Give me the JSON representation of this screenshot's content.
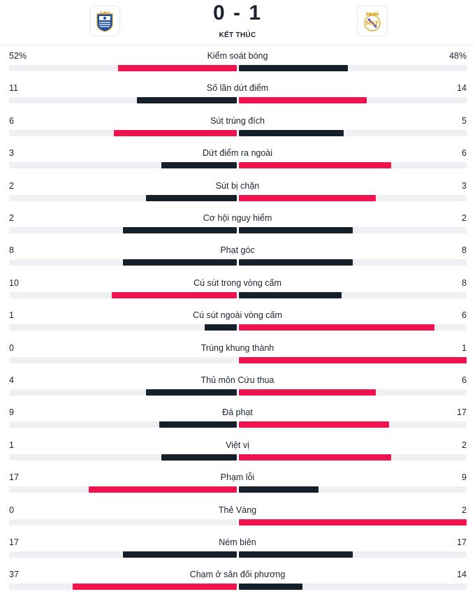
{
  "match": {
    "score": "0 - 1",
    "status": "KẾT THÚC",
    "home_logo": "real-sociedad-crest-icon",
    "away_logo": "real-madrid-crest-icon"
  },
  "colors": {
    "leader": "#f0134d",
    "trailer": "#15202b"
  },
  "stats": [
    {
      "label": "Kiểm soát bóng",
      "home": "52%",
      "away": "48%",
      "home_share": 0.52,
      "away_share": 0.48,
      "home_color": "#f0134d",
      "away_color": "#15202b"
    },
    {
      "label": "Số lần dứt điểm",
      "home": "11",
      "away": "14",
      "home_share": 0.44,
      "away_share": 0.56,
      "home_color": "#15202b",
      "away_color": "#f0134d"
    },
    {
      "label": "Sút trúng đích",
      "home": "6",
      "away": "5",
      "home_share": 0.54,
      "away_share": 0.46,
      "home_color": "#f0134d",
      "away_color": "#15202b"
    },
    {
      "label": "Dứt điểm ra ngoài",
      "home": "3",
      "away": "6",
      "home_share": 0.33,
      "away_share": 0.67,
      "home_color": "#15202b",
      "away_color": "#f0134d"
    },
    {
      "label": "Sút bị chặn",
      "home": "2",
      "away": "3",
      "home_share": 0.4,
      "away_share": 0.6,
      "home_color": "#15202b",
      "away_color": "#f0134d"
    },
    {
      "label": "Cơ hội nguy hiểm",
      "home": "2",
      "away": "2",
      "home_share": 0.5,
      "away_share": 0.5,
      "home_color": "#15202b",
      "away_color": "#15202b"
    },
    {
      "label": "Phạt góc",
      "home": "8",
      "away": "8",
      "home_share": 0.5,
      "away_share": 0.5,
      "home_color": "#15202b",
      "away_color": "#15202b"
    },
    {
      "label": "Cú sút trong vòng cấm",
      "home": "10",
      "away": "8",
      "home_share": 0.55,
      "away_share": 0.45,
      "home_color": "#f0134d",
      "away_color": "#15202b"
    },
    {
      "label": "Cú sút ngoài vòng cấm",
      "home": "1",
      "away": "6",
      "home_share": 0.14,
      "away_share": 0.86,
      "home_color": "#15202b",
      "away_color": "#f0134d"
    },
    {
      "label": "Trúng khung thành",
      "home": "0",
      "away": "1",
      "home_share": 0.0,
      "away_share": 1.0,
      "home_color": "#15202b",
      "away_color": "#f0134d"
    },
    {
      "label": "Thủ môn Cứu thua",
      "home": "4",
      "away": "6",
      "home_share": 0.4,
      "away_share": 0.6,
      "home_color": "#15202b",
      "away_color": "#f0134d"
    },
    {
      "label": "Đá phạt",
      "home": "9",
      "away": "17",
      "home_share": 0.34,
      "away_share": 0.66,
      "home_color": "#15202b",
      "away_color": "#f0134d"
    },
    {
      "label": "Việt vị",
      "home": "1",
      "away": "2",
      "home_share": 0.33,
      "away_share": 0.67,
      "home_color": "#15202b",
      "away_color": "#f0134d"
    },
    {
      "label": "Phạm lỗi",
      "home": "17",
      "away": "9",
      "home_share": 0.65,
      "away_share": 0.35,
      "home_color": "#f0134d",
      "away_color": "#15202b"
    },
    {
      "label": "Thẻ Vàng",
      "home": "0",
      "away": "2",
      "home_share": 0.0,
      "away_share": 1.0,
      "home_color": "#15202b",
      "away_color": "#f0134d"
    },
    {
      "label": "Ném biên",
      "home": "17",
      "away": "17",
      "home_share": 0.5,
      "away_share": 0.5,
      "home_color": "#15202b",
      "away_color": "#15202b"
    },
    {
      "label": "Chạm ở sân đối phương",
      "home": "37",
      "away": "14",
      "home_share": 0.72,
      "away_share": 0.28,
      "home_color": "#f0134d",
      "away_color": "#15202b"
    }
  ]
}
